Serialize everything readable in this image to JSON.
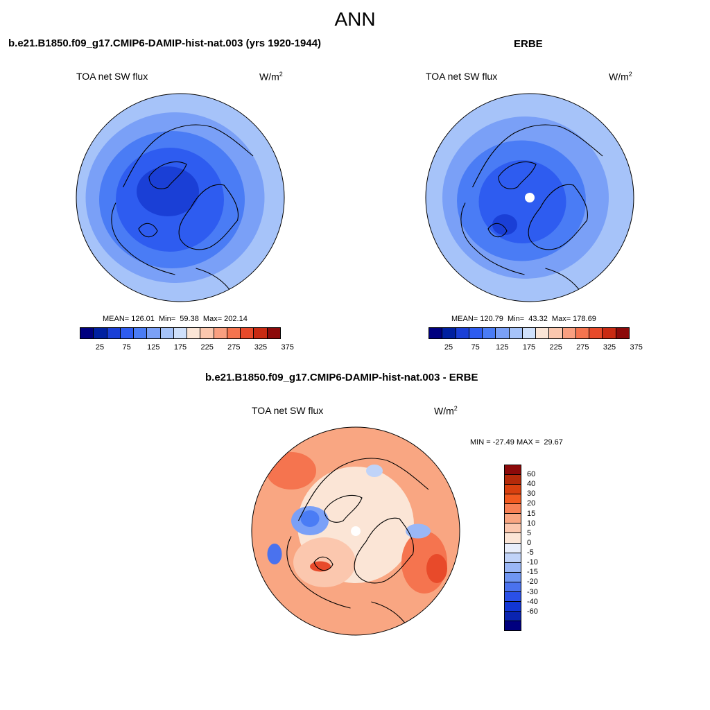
{
  "title": "ANN",
  "panels": [
    {
      "id": "model",
      "title": "b.e21.B1850.f09_g17.CMIP6-DAMIP-hist-nat.003 (yrs 1920-1944)",
      "variable": "TOA net SW flux",
      "units_base": "W/m",
      "units_exp": "2",
      "stats": "MEAN= 126.01  Min=  59.38  Max= 202.14"
    },
    {
      "id": "obs",
      "title": "ERBE",
      "variable": "TOA net SW flux",
      "units_base": "W/m",
      "units_exp": "2",
      "stats": "MEAN= 120.79  Min=  43.32  Max= 178.69"
    },
    {
      "id": "diff",
      "title": "b.e21.B1850.f09_g17.CMIP6-DAMIP-hist-nat.003 - ERBE",
      "variable": "TOA net SW flux",
      "units_base": "W/m",
      "units_exp": "2",
      "stats": "MIN = -27.49 MAX =  29.67"
    }
  ],
  "abs_colorbar": {
    "colors": [
      "#00007f",
      "#0020a0",
      "#1a3fd6",
      "#2e5cf0",
      "#4a7cf5",
      "#7aa0f7",
      "#a6c3f9",
      "#cfe0fb",
      "#fbe5d6",
      "#fbc7ae",
      "#f99f80",
      "#f5744f",
      "#e84a2a",
      "#c92a12",
      "#8c0a0a"
    ],
    "tick_labels": [
      "25",
      "75",
      "125",
      "175",
      "225",
      "275",
      "325",
      "375"
    ]
  },
  "diff_colorbar": {
    "colors": [
      "#8c0a0a",
      "#b52a0a",
      "#d9400f",
      "#f25a20",
      "#f78055",
      "#f9a682",
      "#fbc7ae",
      "#fbe5d6",
      "#e8eefb",
      "#c0d3f8",
      "#9ab7f6",
      "#6f96f2",
      "#4a72ee",
      "#2a50e8",
      "#1236d4",
      "#0a24b0",
      "#00007f"
    ],
    "tick_labels": [
      "60",
      "40",
      "30",
      "20",
      "15",
      "10",
      "5",
      "0",
      "-5",
      "-10",
      "-15",
      "-20",
      "-30",
      "-40",
      "-60"
    ]
  },
  "maps": {
    "model": {
      "background": "#a6c3f9",
      "blobs": [
        {
          "c": "#7aa0f7",
          "rx": 0.86,
          "ry": 0.82,
          "dx": -0.05,
          "dy": 0.0
        },
        {
          "c": "#4a7cf5",
          "rx": 0.7,
          "ry": 0.66,
          "dx": -0.08,
          "dy": 0.02
        },
        {
          "c": "#2e5cf0",
          "rx": 0.52,
          "ry": 0.5,
          "dx": -0.1,
          "dy": 0.02
        },
        {
          "c": "#1a3fd6",
          "rx": 0.3,
          "ry": 0.24,
          "dx": -0.12,
          "dy": -0.06
        }
      ]
    },
    "obs": {
      "background": "#a6c3f9",
      "blobs": [
        {
          "c": "#7aa0f7",
          "rx": 0.8,
          "ry": 0.78,
          "dx": -0.04,
          "dy": 0.0
        },
        {
          "c": "#4a7cf5",
          "rx": 0.62,
          "ry": 0.58,
          "dx": -0.08,
          "dy": 0.03
        },
        {
          "c": "#2e5cf0",
          "rx": 0.42,
          "ry": 0.4,
          "dx": -0.07,
          "dy": 0.04
        },
        {
          "c": "#1a3fd6",
          "rx": 0.12,
          "ry": 0.1,
          "dx": -0.24,
          "dy": 0.26
        }
      ],
      "pole_hole": true
    },
    "diff": {
      "background": "#f9a682",
      "blobs": [
        {
          "c": "#fbe5d6",
          "rx": 0.56,
          "ry": 0.56,
          "dx": 0.0,
          "dy": -0.06
        },
        {
          "c": "#fbc7ae",
          "rx": 0.3,
          "ry": 0.24,
          "dx": -0.3,
          "dy": 0.3
        },
        {
          "c": "#f5744f",
          "rx": 0.22,
          "ry": 0.3,
          "dx": 0.66,
          "dy": 0.3
        },
        {
          "c": "#f5744f",
          "rx": 0.24,
          "ry": 0.18,
          "dx": -0.62,
          "dy": -0.58
        },
        {
          "c": "#e84a2a",
          "rx": 0.1,
          "ry": 0.14,
          "dx": 0.78,
          "dy": 0.36
        },
        {
          "c": "#7aa0f7",
          "rx": 0.18,
          "ry": 0.14,
          "dx": -0.44,
          "dy": -0.1
        },
        {
          "c": "#4a7cf5",
          "rx": 0.09,
          "ry": 0.08,
          "dx": -0.44,
          "dy": -0.12
        },
        {
          "c": "#9ab7f6",
          "rx": 0.12,
          "ry": 0.07,
          "dx": 0.6,
          "dy": 0.0
        },
        {
          "c": "#4a72ee",
          "rx": 0.07,
          "ry": 0.1,
          "dx": -0.78,
          "dy": 0.22
        },
        {
          "c": "#c0d3f8",
          "rx": 0.08,
          "ry": 0.06,
          "dx": 0.18,
          "dy": -0.58
        },
        {
          "c": "#e84a2a",
          "rx": 0.1,
          "ry": 0.05,
          "dx": -0.34,
          "dy": 0.34
        }
      ],
      "pole_hole": true
    }
  }
}
